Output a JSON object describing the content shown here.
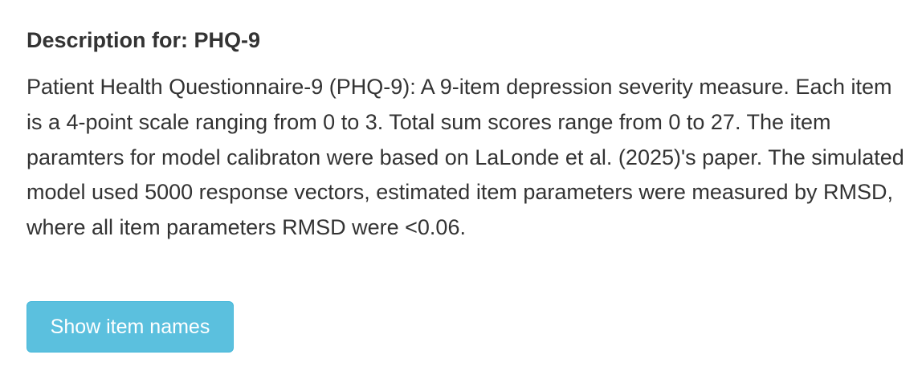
{
  "heading": "Description for: PHQ-9",
  "description": "Patient Health Questionnaire-9 (PHQ-9): A 9-item depression severity measure. Each item is a 4-point scale ranging from 0 to 3. Total sum scores range from 0 to 27. The item paramters for model calibraton were based on LaLonde et al. (2025)'s paper. The simulated model used 5000 response vectors, estimated item parameters were measured by RMSD, where all item parameters RMSD were <0.06.",
  "button": {
    "label": "Show item names",
    "color": "#5bc0de"
  }
}
